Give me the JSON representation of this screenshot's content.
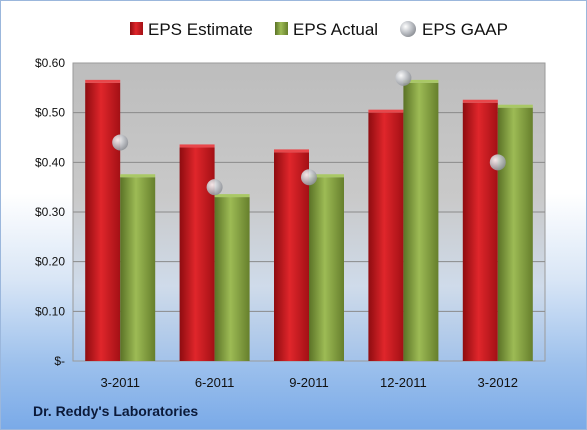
{
  "company": "Dr. Reddy's Laboratories",
  "chart_data": {
    "type": "bar",
    "categories": [
      "3-2011",
      "6-2011",
      "9-2011",
      "12-2011",
      "3-2012"
    ],
    "series": [
      {
        "name": "EPS Estimate",
        "kind": "bar",
        "color": "#c0161b",
        "values": [
          0.56,
          0.43,
          0.42,
          0.5,
          0.52
        ]
      },
      {
        "name": "EPS Actual",
        "kind": "bar",
        "color": "#7d9a3a",
        "values": [
          0.37,
          0.33,
          0.37,
          0.56,
          0.51
        ]
      },
      {
        "name": "EPS GAAP",
        "kind": "marker",
        "color": "#b8bcc2",
        "values": [
          0.44,
          0.35,
          0.37,
          0.57,
          0.4
        ]
      }
    ],
    "yticks": [
      "$-",
      "$0.10",
      "$0.20",
      "$0.30",
      "$0.40",
      "$0.50",
      "$0.60"
    ],
    "ylim": [
      0,
      0.6
    ],
    "grid": true,
    "legend": "top"
  }
}
